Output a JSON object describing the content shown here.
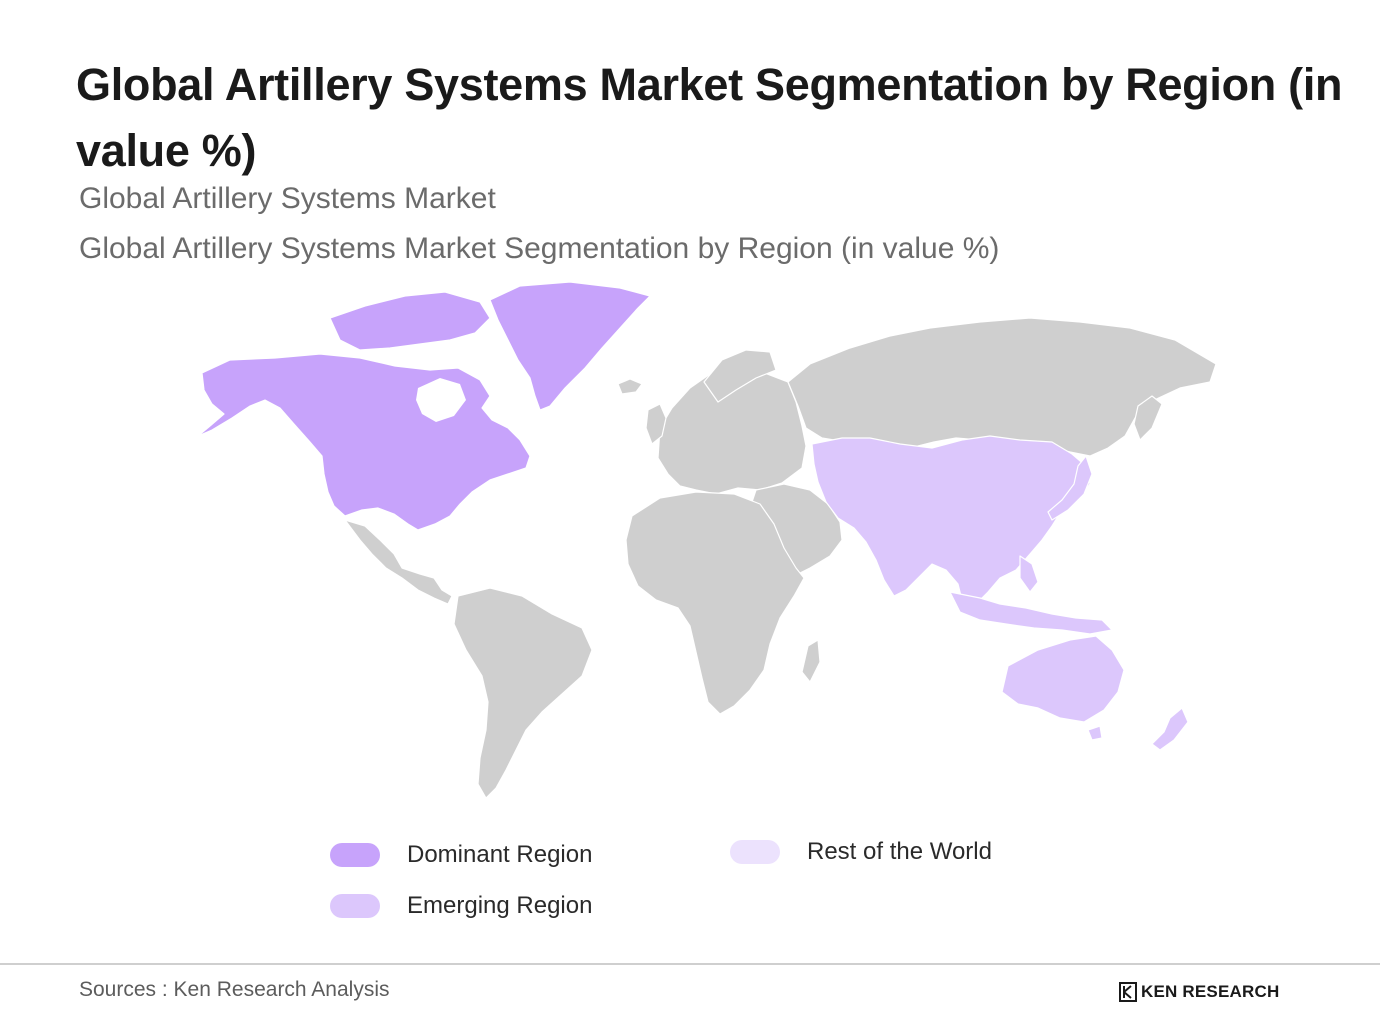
{
  "header": {
    "title": "Global Artillery Systems Market Segmentation by Region (in value %)",
    "subtitle_1": "Global Artillery Systems Market",
    "subtitle_2": "Global Artillery Systems Market Segmentation by Region (in value %)"
  },
  "map": {
    "colors": {
      "dominant": "#c7a3fb",
      "emerging": "#dcc7fc",
      "rest": "#ece2fd",
      "unclassified": "#cfcfcf",
      "borders": "#ffffff"
    },
    "regions": [
      {
        "name": "North America",
        "category": "dominant"
      },
      {
        "name": "Greenland",
        "category": "dominant"
      },
      {
        "name": "Asia-Pacific",
        "category": "emerging"
      },
      {
        "name": "Australia",
        "category": "emerging"
      },
      {
        "name": "Europe",
        "category": "unclassified"
      },
      {
        "name": "Russia",
        "category": "unclassified"
      },
      {
        "name": "Middle East",
        "category": "unclassified"
      },
      {
        "name": "Africa",
        "category": "unclassified"
      },
      {
        "name": "Latin America",
        "category": "unclassified"
      }
    ]
  },
  "legend": {
    "dominant": {
      "label": "Dominant Region",
      "color": "#c7a3fb"
    },
    "emerging": {
      "label": "Emerging Region",
      "color": "#dcc7fc"
    },
    "rest": {
      "label": "Rest of the World",
      "color": "#ece2fd"
    }
  },
  "footer": {
    "source": "Sources : Ken Research Analysis",
    "brand": "KEN RESEARCH"
  }
}
